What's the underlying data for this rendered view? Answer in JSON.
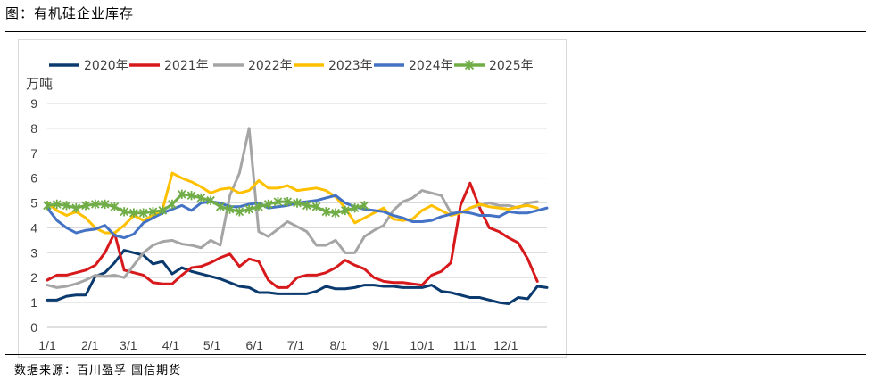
{
  "figure_title": "图：有机硅企业库存",
  "source": "数据来源：百川盈孚 国信期货",
  "chart_data": {
    "type": "line",
    "title": "有机硅企业库存",
    "ylabel": "万吨",
    "xlabel": "",
    "ylim": [
      0,
      9
    ],
    "yticks": [
      "0",
      "1",
      "2",
      "3",
      "4",
      "5",
      "6",
      "7",
      "8",
      "9"
    ],
    "x_count": 53,
    "xticks": [
      {
        "label": "1/1",
        "x": 0
      },
      {
        "label": "2/1",
        "x": 4.43
      },
      {
        "label": "3/1",
        "x": 8.43
      },
      {
        "label": "4/1",
        "x": 12.86
      },
      {
        "label": "5/1",
        "x": 17.14
      },
      {
        "label": "6/1",
        "x": 21.57
      },
      {
        "label": "7/1",
        "x": 25.86
      },
      {
        "label": "8/1",
        "x": 30.29
      },
      {
        "label": "9/1",
        "x": 34.71
      },
      {
        "label": "10/1",
        "x": 39.0
      },
      {
        "label": "11/1",
        "x": 43.43
      },
      {
        "label": "12/1",
        "x": 47.71
      }
    ],
    "series": [
      {
        "name": "2020年",
        "color": "#0b3a6e",
        "marker": "none",
        "values": [
          1.1,
          1.1,
          1.25,
          1.3,
          1.3,
          2.05,
          2.2,
          2.6,
          3.1,
          3.0,
          2.9,
          2.55,
          2.65,
          2.15,
          2.4,
          2.25,
          2.15,
          2.05,
          1.95,
          1.8,
          1.65,
          1.6,
          1.4,
          1.4,
          1.35,
          1.35,
          1.35,
          1.35,
          1.45,
          1.65,
          1.55,
          1.55,
          1.6,
          1.7,
          1.7,
          1.65,
          1.65,
          1.6,
          1.6,
          1.6,
          1.7,
          1.45,
          1.4,
          1.3,
          1.2,
          1.2,
          1.1,
          1.0,
          0.95,
          1.2,
          1.15,
          1.65,
          1.6
        ]
      },
      {
        "name": "2021年",
        "color": "#d7191c",
        "marker": "none",
        "values": [
          1.9,
          2.1,
          2.1,
          2.2,
          2.3,
          2.5,
          3.0,
          3.8,
          2.3,
          2.2,
          2.1,
          1.8,
          1.75,
          1.75,
          2.1,
          2.4,
          2.45,
          2.6,
          2.8,
          2.95,
          2.45,
          2.75,
          2.65,
          1.9,
          1.6,
          1.6,
          2.0,
          2.1,
          2.1,
          2.2,
          2.4,
          2.7,
          2.5,
          2.35,
          2.0,
          1.85,
          1.8,
          1.8,
          1.75,
          1.7,
          2.1,
          2.25,
          2.6,
          4.9,
          5.8,
          4.8,
          4.0,
          3.85,
          3.6,
          3.4,
          2.75,
          1.85,
          null
        ]
      },
      {
        "name": "2022年",
        "color": "#a5a5a5",
        "marker": "none",
        "values": [
          1.7,
          1.6,
          1.65,
          1.75,
          1.9,
          2.1,
          2.05,
          2.1,
          2.0,
          2.5,
          3.0,
          3.3,
          3.45,
          3.5,
          3.35,
          3.3,
          3.2,
          3.5,
          3.3,
          5.3,
          6.2,
          8.0,
          3.85,
          3.65,
          3.95,
          4.25,
          4.05,
          3.85,
          3.3,
          3.3,
          3.5,
          3.0,
          3.0,
          3.65,
          3.9,
          4.1,
          4.7,
          5.05,
          5.2,
          5.5,
          5.4,
          5.3,
          4.6,
          4.6,
          4.8,
          4.9,
          5.0,
          4.9,
          4.9,
          4.8,
          5.0,
          5.05,
          null
        ]
      },
      {
        "name": "2023年",
        "color": "#ffc000",
        "marker": "none",
        "values": [
          5.0,
          4.7,
          4.5,
          4.65,
          4.4,
          4.0,
          3.8,
          3.8,
          4.1,
          4.5,
          4.3,
          4.5,
          4.75,
          6.2,
          6.0,
          5.85,
          5.65,
          5.4,
          5.55,
          5.6,
          5.4,
          5.5,
          5.9,
          5.6,
          5.6,
          5.7,
          5.5,
          5.55,
          5.6,
          5.5,
          5.25,
          4.8,
          4.2,
          4.4,
          4.6,
          4.8,
          4.35,
          4.3,
          4.35,
          4.7,
          4.9,
          4.7,
          4.5,
          4.6,
          4.8,
          4.95,
          4.85,
          4.8,
          4.75,
          4.85,
          4.9,
          4.8,
          null
        ]
      },
      {
        "name": "2024年",
        "color": "#4472c4",
        "marker": "none",
        "values": [
          4.8,
          4.3,
          4.0,
          3.8,
          3.9,
          3.95,
          4.1,
          3.7,
          3.6,
          3.75,
          4.2,
          4.4,
          4.6,
          4.75,
          4.9,
          4.7,
          5.0,
          5.05,
          5.0,
          4.85,
          4.85,
          4.95,
          5.0,
          4.8,
          4.85,
          4.9,
          5.0,
          5.05,
          5.1,
          5.2,
          5.3,
          5.0,
          4.85,
          4.75,
          4.7,
          4.65,
          4.5,
          4.4,
          4.25,
          4.25,
          4.3,
          4.45,
          4.55,
          4.65,
          4.6,
          4.5,
          4.5,
          4.45,
          4.65,
          4.6,
          4.6,
          4.7,
          4.8
        ]
      },
      {
        "name": "2025年",
        "color": "#70ad47",
        "marker": "star",
        "values": [
          4.9,
          4.95,
          4.9,
          4.8,
          4.9,
          4.95,
          4.95,
          4.85,
          4.65,
          4.6,
          4.6,
          4.65,
          4.7,
          4.95,
          5.35,
          5.3,
          5.2,
          5.1,
          4.85,
          4.75,
          4.65,
          4.75,
          4.85,
          4.95,
          5.05,
          5.05,
          5.0,
          4.9,
          4.85,
          4.65,
          4.6,
          4.7,
          4.8,
          4.9,
          null,
          null,
          null,
          null,
          null,
          null,
          null,
          null,
          null,
          null,
          null,
          null,
          null,
          null,
          null,
          null,
          null,
          null,
          null
        ]
      }
    ]
  }
}
